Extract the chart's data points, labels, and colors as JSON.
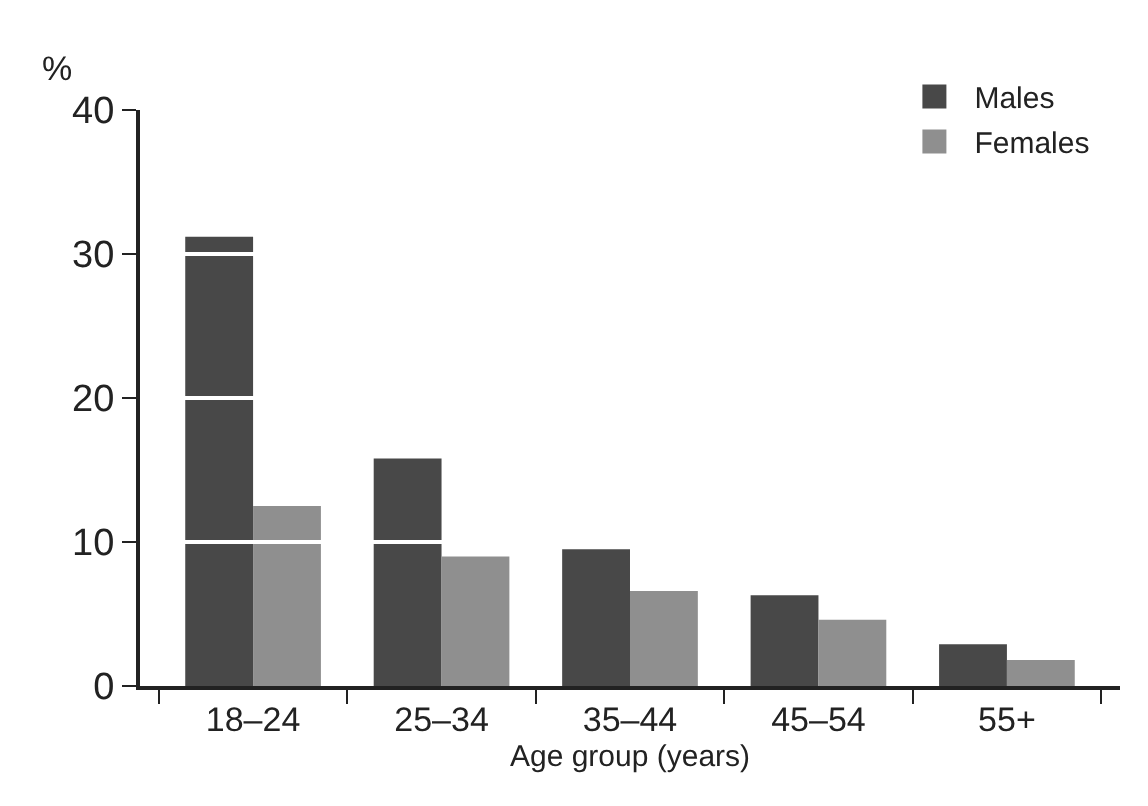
{
  "chart_data": {
    "type": "bar",
    "ylabel": "%",
    "xlabel": "Age group (years)",
    "categories": [
      "18–24",
      "25–34",
      "35–44",
      "45–54",
      "55+"
    ],
    "series": [
      {
        "name": "Males",
        "color": "#484848",
        "values": [
          31.2,
          15.8,
          9.5,
          6.3,
          2.9
        ]
      },
      {
        "name": "Females",
        "color": "#8f8f8f",
        "values": [
          12.5,
          9.0,
          6.6,
          4.6,
          1.8
        ]
      }
    ],
    "ylim": [
      0,
      40
    ],
    "yticks": [
      0,
      10,
      20,
      30,
      40
    ],
    "grid": "y",
    "legend": "top right"
  }
}
